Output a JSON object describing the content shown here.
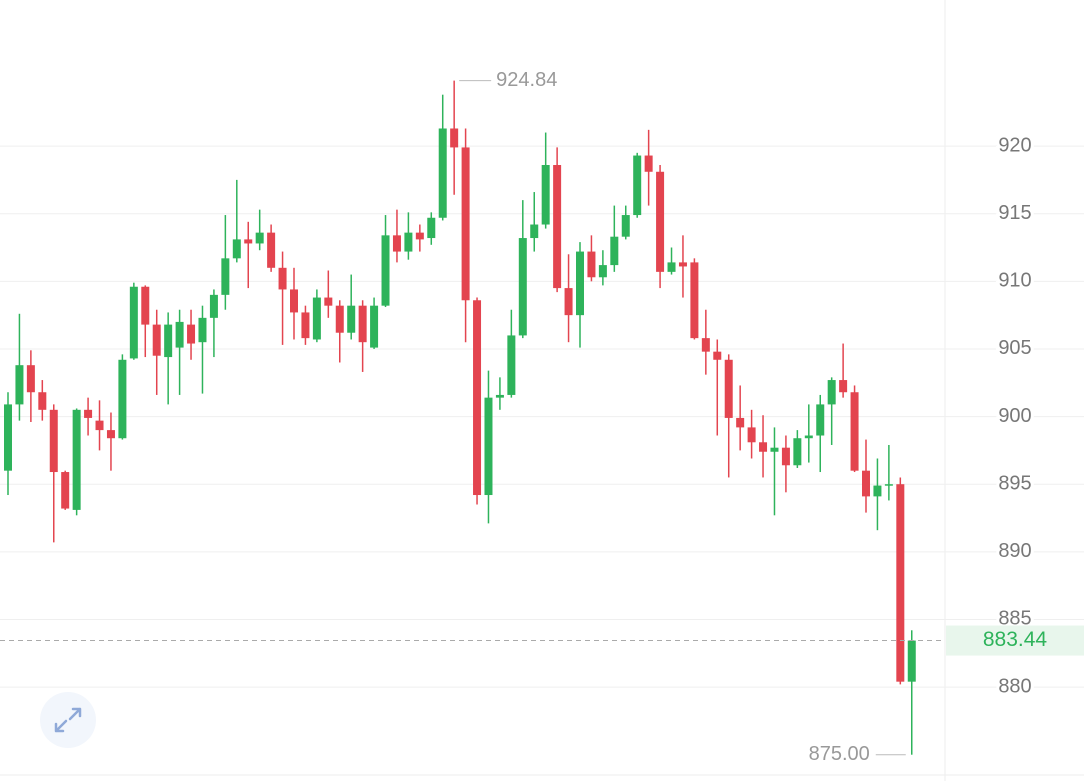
{
  "chart_data": {
    "type": "candlestick",
    "categories": [
      null,
      null,
      null,
      null,
      null,
      null,
      null,
      null,
      null,
      null,
      null,
      null,
      null,
      null,
      null,
      null,
      null,
      null,
      null,
      null,
      null,
      null,
      null,
      null,
      null,
      null,
      null,
      null,
      null,
      null,
      null,
      null,
      null,
      null,
      null,
      null,
      null,
      null,
      null,
      null,
      null,
      null,
      null,
      null,
      null,
      null,
      null,
      null,
      null,
      null,
      null,
      null,
      null,
      null,
      null,
      null,
      null,
      null,
      null,
      null,
      null,
      null,
      null,
      null,
      null,
      null,
      null,
      null,
      null,
      null,
      null,
      null,
      null,
      null,
      null,
      null,
      null,
      null,
      null,
      null
    ],
    "open": [
      896.0,
      900.9,
      903.8,
      901.8,
      900.5,
      895.9,
      893.1,
      900.5,
      899.7,
      899.0,
      898.4,
      904.3,
      909.6,
      906.8,
      904.4,
      905.1,
      906.8,
      905.5,
      907.3,
      909.0,
      911.7,
      913.1,
      912.8,
      913.6,
      911.0,
      909.4,
      907.7,
      905.7,
      908.8,
      908.2,
      906.2,
      908.2,
      905.1,
      908.2,
      913.4,
      912.2,
      913.6,
      913.2,
      914.7,
      921.3,
      919.9,
      908.6,
      894.2,
      901.4,
      901.6,
      906.0,
      913.2,
      914.2,
      918.6,
      909.5,
      907.5,
      912.2,
      910.3,
      911.2,
      913.3,
      914.9,
      919.3,
      918.1,
      910.7,
      911.4,
      911.4,
      905.8,
      904.8,
      904.2,
      899.9,
      899.2,
      898.1,
      897.4,
      897.7,
      896.4,
      898.4,
      898.6,
      900.9,
      902.7,
      901.8,
      896.0,
      894.1,
      894.9,
      895.0,
      880.4
    ],
    "high": [
      901.8,
      907.6,
      904.9,
      902.7,
      900.9,
      896.0,
      900.6,
      901.4,
      901.2,
      900.3,
      904.6,
      909.9,
      909.7,
      907.9,
      907.7,
      907.9,
      907.9,
      908.2,
      909.4,
      914.9,
      917.5,
      914.4,
      915.3,
      914.2,
      912.2,
      911.0,
      908.2,
      909.4,
      910.8,
      908.6,
      910.5,
      908.6,
      908.8,
      914.9,
      915.3,
      915.1,
      914.2,
      915.1,
      923.8,
      924.84,
      921.3,
      908.8,
      903.4,
      902.9,
      907.9,
      916.0,
      916.6,
      921.0,
      919.9,
      912.0,
      912.9,
      913.4,
      912.3,
      915.6,
      915.6,
      919.5,
      921.2,
      918.6,
      912.5,
      913.4,
      911.7,
      907.9,
      905.7,
      904.6,
      902.3,
      900.5,
      900.1,
      899.2,
      898.6,
      899.0,
      900.9,
      901.6,
      902.9,
      905.4,
      902.3,
      898.3,
      896.9,
      897.9,
      895.5,
      884.2
    ],
    "low": [
      894.2,
      899.7,
      899.6,
      899.7,
      890.7,
      893.1,
      892.7,
      898.6,
      897.5,
      896.0,
      898.3,
      904.2,
      904.4,
      901.6,
      900.9,
      901.6,
      904.2,
      901.7,
      904.4,
      907.9,
      911.4,
      909.5,
      912.3,
      910.7,
      905.3,
      905.7,
      905.3,
      905.5,
      907.3,
      904.0,
      905.7,
      903.3,
      905.0,
      908.1,
      911.4,
      911.6,
      912.2,
      912.7,
      914.5,
      916.4,
      905.5,
      893.5,
      892.1,
      900.5,
      901.4,
      905.8,
      912.2,
      913.9,
      909.2,
      905.5,
      905.1,
      910.0,
      909.7,
      910.7,
      913.1,
      914.7,
      915.6,
      909.5,
      910.5,
      908.8,
      905.7,
      903.1,
      898.6,
      895.5,
      897.5,
      896.9,
      895.5,
      892.7,
      894.4,
      896.2,
      896.6,
      895.9,
      897.9,
      901.4,
      895.9,
      892.9,
      891.6,
      893.8,
      880.2,
      875.0
    ],
    "close": [
      900.9,
      903.8,
      901.8,
      900.5,
      895.9,
      893.2,
      900.5,
      899.9,
      899.0,
      898.4,
      904.2,
      909.6,
      906.8,
      904.5,
      906.8,
      907.0,
      905.4,
      907.3,
      909.0,
      911.7,
      913.1,
      912.8,
      913.6,
      911.0,
      909.4,
      907.7,
      905.8,
      908.8,
      908.2,
      906.2,
      908.2,
      905.5,
      908.2,
      913.4,
      912.2,
      913.6,
      913.1,
      914.7,
      921.3,
      919.9,
      908.6,
      894.2,
      901.4,
      901.6,
      906.0,
      913.2,
      914.2,
      918.6,
      909.5,
      907.5,
      912.2,
      910.3,
      911.2,
      913.3,
      914.9,
      919.3,
      918.1,
      910.7,
      911.4,
      911.1,
      905.8,
      904.8,
      904.2,
      899.9,
      899.2,
      898.1,
      897.4,
      897.7,
      896.4,
      898.4,
      898.6,
      900.9,
      902.7,
      901.8,
      896.0,
      894.1,
      894.9,
      895.0,
      880.4,
      883.44
    ],
    "up_color": "#2eb35b",
    "down_color": "#e3444f",
    "ylim": [
      873.5,
      930.8
    ],
    "yticks": [
      880,
      885,
      890,
      895,
      900,
      905,
      910,
      915,
      920
    ],
    "grid": true,
    "annotations": {
      "high": {
        "value": 924.84,
        "label": "924.84"
      },
      "low": {
        "value": 875.0,
        "label": "875.00"
      },
      "last": {
        "value": 883.44,
        "label": "883.44"
      }
    }
  }
}
